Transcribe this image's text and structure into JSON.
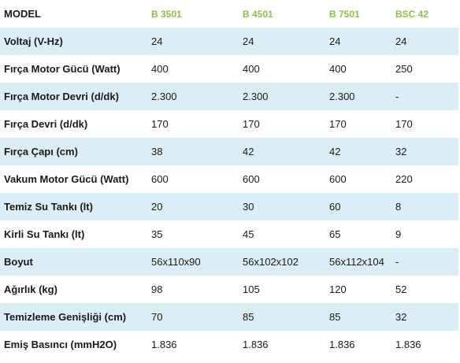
{
  "table": {
    "header": [
      "MODEL",
      "B 3501",
      "B 4501",
      "B 7501",
      "BSC 42"
    ],
    "rows": [
      [
        "Voltaj (V-Hz)",
        "24",
        "24",
        "24",
        "24"
      ],
      [
        "Fırça Motor Gücü (Watt)",
        "400",
        "400",
        "400",
        "250"
      ],
      [
        "Fırça Motor Devri (d/dk)",
        "2.300",
        "2.300",
        "2.300",
        "-"
      ],
      [
        "Fırça Devri (d/dk)",
        "170",
        "170",
        "170",
        "170"
      ],
      [
        "Fırça Çapı (cm)",
        "38",
        "42",
        "42",
        "32"
      ],
      [
        "Vakum Motor Gücü (Watt)",
        "600",
        "600",
        "600",
        "220"
      ],
      [
        "Temiz Su Tankı (lt)",
        "20",
        "30",
        "60",
        "8"
      ],
      [
        "Kirli Su Tankı (lt)",
        "35",
        "45",
        "65",
        "9"
      ],
      [
        "Boyut",
        "56x110x90",
        "56x102x102",
        "56x112x104",
        "-"
      ],
      [
        "Ağırlık (kg)",
        "98",
        "105",
        "120",
        "52"
      ],
      [
        "Temizleme Genişliği (cm)",
        "70",
        "85",
        "85",
        "32"
      ],
      [
        "Emiş Basıncı (mmH2O)",
        "1.836",
        "1.836",
        "1.836",
        "1.836"
      ]
    ]
  },
  "colors": {
    "header_accent": "#8cc04a",
    "row_shade": "#dceef5",
    "text": "#1a1a1a",
    "background": "#ffffff"
  }
}
